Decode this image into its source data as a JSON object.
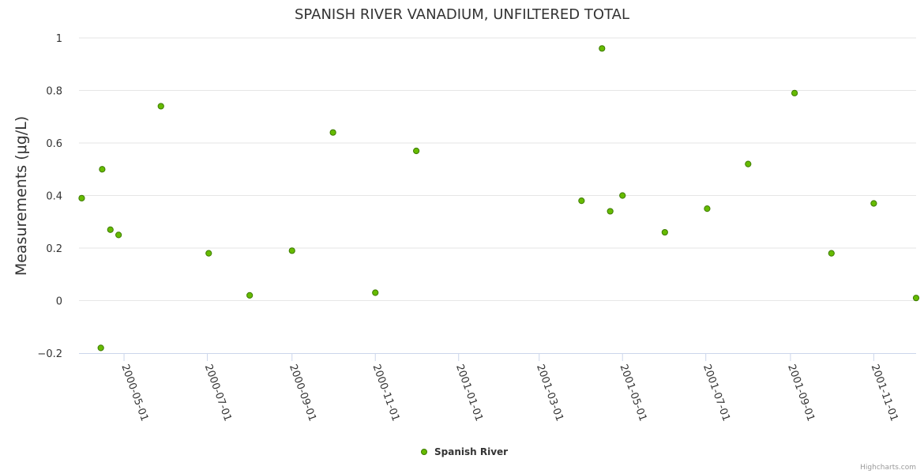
{
  "chart_data": {
    "type": "scatter",
    "title": "SPANISH RIVER VANADIUM, UNFILTERED TOTAL",
    "xlabel": "",
    "ylabel": "Measurements (μg/L)",
    "ylim": [
      -0.2,
      1
    ],
    "yticks": [
      "−0.2",
      "0",
      "0.2",
      "0.4",
      "0.6",
      "0.8",
      "1"
    ],
    "ytick_values": [
      -0.2,
      0,
      0.2,
      0.4,
      0.6,
      0.8,
      1
    ],
    "xlim": [
      "2000-03-29",
      "2001-12-02"
    ],
    "xticks": [
      "2000-05-01",
      "2000-07-01",
      "2000-09-01",
      "2000-11-01",
      "2001-01-01",
      "2001-03-01",
      "2001-05-01",
      "2001-07-01",
      "2001-09-01",
      "2001-11-01"
    ],
    "grid": true,
    "legend": "bottom-center",
    "series": [
      {
        "name": "Spanish River",
        "color": "#66bb00",
        "edge_color": "#3d7a00",
        "points": [
          {
            "x": "2000-03-31",
            "y": 0.39
          },
          {
            "x": "2000-04-14",
            "y": -0.18
          },
          {
            "x": "2000-04-15",
            "y": 0.5
          },
          {
            "x": "2000-04-21",
            "y": 0.27
          },
          {
            "x": "2000-04-27",
            "y": 0.25
          },
          {
            "x": "2000-05-28",
            "y": 0.74
          },
          {
            "x": "2000-07-02",
            "y": 0.18
          },
          {
            "x": "2000-08-01",
            "y": 0.02
          },
          {
            "x": "2000-09-01",
            "y": 0.19
          },
          {
            "x": "2000-10-01",
            "y": 0.64
          },
          {
            "x": "2000-11-01",
            "y": 0.03
          },
          {
            "x": "2000-12-01",
            "y": 0.57
          },
          {
            "x": "2001-04-01",
            "y": 0.38
          },
          {
            "x": "2001-04-16",
            "y": 0.96
          },
          {
            "x": "2001-04-22",
            "y": 0.34
          },
          {
            "x": "2001-05-01",
            "y": 0.4
          },
          {
            "x": "2001-06-01",
            "y": 0.26
          },
          {
            "x": "2001-07-02",
            "y": 0.35
          },
          {
            "x": "2001-08-01",
            "y": 0.52
          },
          {
            "x": "2001-09-04",
            "y": 0.79
          },
          {
            "x": "2001-10-01",
            "y": 0.18
          },
          {
            "x": "2001-11-01",
            "y": 0.37
          },
          {
            "x": "2001-12-02",
            "y": 0.01
          }
        ]
      }
    ]
  },
  "credits": "Highcharts.com"
}
